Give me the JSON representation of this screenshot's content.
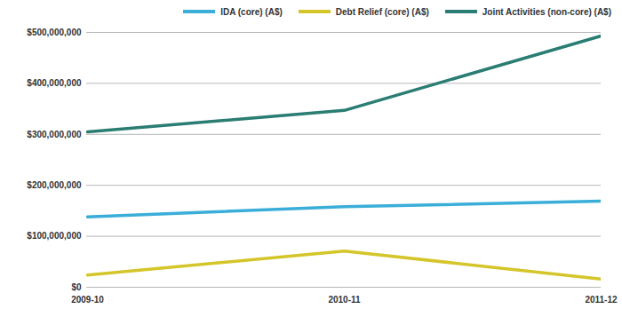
{
  "chart_data": {
    "type": "line",
    "categories": [
      "2009-10",
      "2010-11",
      "2011-12"
    ],
    "series": [
      {
        "name": "IDA (core) (A$)",
        "color": "#3aaed8",
        "values": [
          138000000,
          158000000,
          169000000
        ]
      },
      {
        "name": "Debt Relief (core) (A$)",
        "color": "#d4c62a",
        "values": [
          24000000,
          71000000,
          16000000
        ]
      },
      {
        "name": "Joint Activities (non-core) (A$)",
        "color": "#2a7d73",
        "values": [
          305000000,
          347000000,
          493000000
        ]
      }
    ],
    "ylim": [
      0,
      500000000
    ],
    "yticks": [
      {
        "value": 0,
        "label": "$0"
      },
      {
        "value": 100000000,
        "label": "$100,000,000"
      },
      {
        "value": 200000000,
        "label": "$200,000,000"
      },
      {
        "value": 300000000,
        "label": "$300,000,000"
      },
      {
        "value": 400000000,
        "label": "$400,000,000"
      },
      {
        "value": 500000000,
        "label": "$500,000,000"
      }
    ],
    "grid": true,
    "legend": "top-right"
  }
}
